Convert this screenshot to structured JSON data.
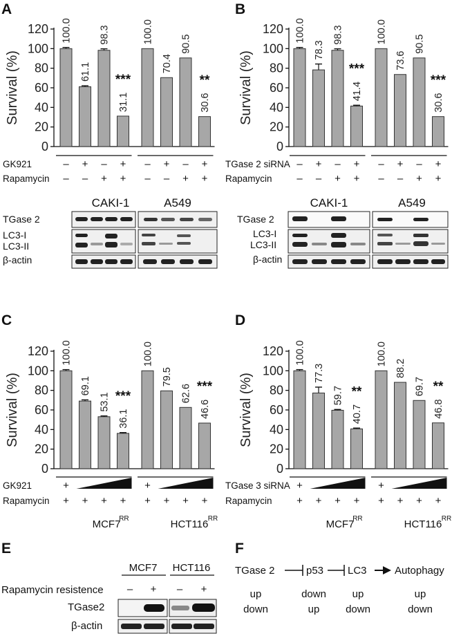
{
  "panels": {
    "A": "A",
    "B": "B",
    "C": "C",
    "D": "D",
    "E": "E",
    "F": "F"
  },
  "chart_data": [
    {
      "panel": "A",
      "type": "bar",
      "ylabel": "Survival (%)",
      "ylim": [
        0,
        120
      ],
      "yticks": [
        "0",
        "20",
        "40",
        "60",
        "80",
        "100",
        "120"
      ],
      "values": [
        100.0,
        61.1,
        98.3,
        31.1,
        100.0,
        70.4,
        90.5,
        30.6
      ],
      "value_labels": [
        "100.0",
        "61.1",
        "98.3",
        "31.1",
        "100.0",
        "70.4",
        "90.5",
        "30.6"
      ],
      "error": [
        1.2,
        1.0,
        1.5,
        0,
        0,
        0,
        0,
        0
      ],
      "significance": [
        "",
        "",
        "",
        "***",
        "",
        "",
        "",
        "**"
      ],
      "rows": [
        {
          "label": "GK921",
          "signs": [
            "–",
            "+",
            "–",
            "+",
            "–",
            "+",
            "–",
            "+"
          ]
        },
        {
          "label": "Rapamycin",
          "signs": [
            "–",
            "–",
            "+",
            "+",
            "–",
            "–",
            "+",
            "+"
          ]
        }
      ]
    },
    {
      "panel": "B",
      "type": "bar",
      "ylabel": "Survival (%)",
      "ylim": [
        0,
        120
      ],
      "yticks": [
        "0",
        "20",
        "40",
        "60",
        "80",
        "100",
        "120"
      ],
      "values": [
        100.0,
        78.3,
        98.3,
        41.4,
        100.0,
        73.6,
        90.5,
        30.6
      ],
      "value_labels": [
        "100.0",
        "78.3",
        "98.3",
        "41.4",
        "100.0",
        "73.6",
        "90.5",
        "30.6"
      ],
      "error": [
        1.2,
        6.0,
        1.5,
        0.8,
        0,
        0,
        0,
        0
      ],
      "significance": [
        "",
        "",
        "",
        "***",
        "",
        "",
        "",
        "***"
      ],
      "rows": [
        {
          "label": "TGase 2 siRNA",
          "signs": [
            "–",
            "+",
            "–",
            "+",
            "–",
            "+",
            "–",
            "+"
          ]
        },
        {
          "label": "Rapamycin",
          "signs": [
            "–",
            "–",
            "+",
            "+",
            "–",
            "–",
            "+",
            "+"
          ]
        }
      ]
    },
    {
      "panel": "C",
      "type": "bar",
      "ylabel": "Survival (%)",
      "ylim": [
        0,
        120
      ],
      "yticks": [
        "0",
        "20",
        "40",
        "60",
        "80",
        "100",
        "120"
      ],
      "values": [
        100.0,
        69.1,
        53.1,
        36.1,
        100.0,
        79.5,
        62.6,
        46.6
      ],
      "value_labels": [
        "100.0",
        "69.1",
        "53.1",
        "36.1",
        "100.0",
        "79.5",
        "62.6",
        "46.6"
      ],
      "error": [
        1.2,
        1.2,
        0.8,
        0.8,
        0,
        0,
        0,
        0
      ],
      "significance": [
        "",
        "",
        "",
        "***",
        "",
        "",
        "",
        "***"
      ],
      "rows": [
        {
          "label": "GK921",
          "first": "+"
        },
        {
          "label": "Rapamycin",
          "signs": [
            "+",
            "+",
            "+",
            "+",
            "+",
            "+",
            "+",
            "+"
          ]
        }
      ],
      "groups": [
        {
          "name": "MCF7",
          "sup": "RR"
        },
        {
          "name": "HCT116",
          "sup": "RR"
        }
      ]
    },
    {
      "panel": "D",
      "type": "bar",
      "ylabel": "Survival (%)",
      "ylim": [
        0,
        120
      ],
      "yticks": [
        "0",
        "20",
        "40",
        "60",
        "80",
        "100",
        "120"
      ],
      "values": [
        100.0,
        77.3,
        59.7,
        40.7,
        100.0,
        88.2,
        69.7,
        46.8
      ],
      "value_labels": [
        "100.0",
        "77.3",
        "59.7",
        "40.7",
        "100.0",
        "88.2",
        "69.7",
        "46.8"
      ],
      "error": [
        1.2,
        6.0,
        0.8,
        0.8,
        0,
        0,
        0,
        0
      ],
      "significance": [
        "",
        "",
        "",
        "**",
        "",
        "",
        "",
        "**"
      ],
      "rows": [
        {
          "label": "TGase 3 siRNA",
          "first": "+"
        },
        {
          "label": "Rapamycin",
          "signs": [
            "+",
            "+",
            "+",
            "+",
            "+",
            "+",
            "+",
            "+"
          ]
        }
      ],
      "groups": [
        {
          "name": "MCF7",
          "sup": "RR"
        },
        {
          "name": "HCT116",
          "sup": "RR"
        }
      ]
    }
  ],
  "blots": {
    "cells": [
      "CAKI-1",
      "A549"
    ],
    "A": [
      "TGase 2",
      "LC3-I",
      "LC3-II",
      "β-actin"
    ],
    "B": [
      "TGase 2",
      "LC3-I",
      "LC3-II",
      "β-actin"
    ]
  },
  "panelE": {
    "cells": [
      "MCF7",
      "HCT116"
    ],
    "condition": "Rapamycin resistence",
    "signs": [
      "–",
      "+",
      "–",
      "+"
    ],
    "rows": [
      "TGase2",
      "β-actin"
    ]
  },
  "panelF": {
    "nodes": [
      "TGase 2",
      "p53",
      "LC3",
      "Autophagy"
    ],
    "row1": [
      "up",
      "down",
      "up",
      "up"
    ],
    "row2": [
      "down",
      "up",
      "down",
      "down"
    ]
  }
}
